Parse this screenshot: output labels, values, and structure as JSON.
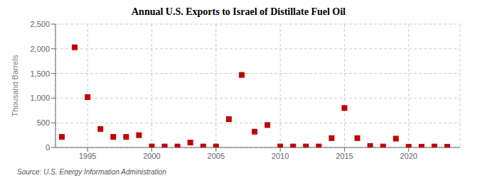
{
  "chart_data": {
    "type": "scatter",
    "title": "Annual U.S. Exports to Israel of Distillate Fuel Oil",
    "y_label": "Thousand Barrels",
    "annotation": "Source: U.S. Energy Information Administration",
    "x": [
      1993,
      1994,
      1995,
      1996,
      1997,
      1998,
      1999,
      2000,
      2001,
      2002,
      2003,
      2004,
      2005,
      2006,
      2007,
      2008,
      2009,
      2010,
      2011,
      2012,
      2013,
      2014,
      2015,
      2016,
      2017,
      2018,
      2019,
      2020,
      2021,
      2022,
      2023
    ],
    "values": [
      215,
      2030,
      1020,
      375,
      215,
      215,
      250,
      20,
      20,
      20,
      100,
      20,
      20,
      575,
      1470,
      320,
      455,
      20,
      20,
      20,
      20,
      190,
      800,
      190,
      30,
      20,
      180,
      15,
      15,
      20,
      15
    ],
    "color": "#c00000",
    "marker": "square",
    "xlim": [
      1992.5,
      2024
    ],
    "ylim": [
      0,
      2500
    ],
    "xticks": [
      1995,
      2000,
      2005,
      2010,
      2015,
      2020
    ],
    "yticks": [
      0,
      500,
      {
        "value": 1000,
        "label": "1,000"
      },
      {
        "value": 1500,
        "label": "1,500"
      },
      {
        "value": 2000,
        "label": "2,000"
      },
      {
        "value": 2500,
        "label": "2,500"
      }
    ],
    "grid": true
  }
}
